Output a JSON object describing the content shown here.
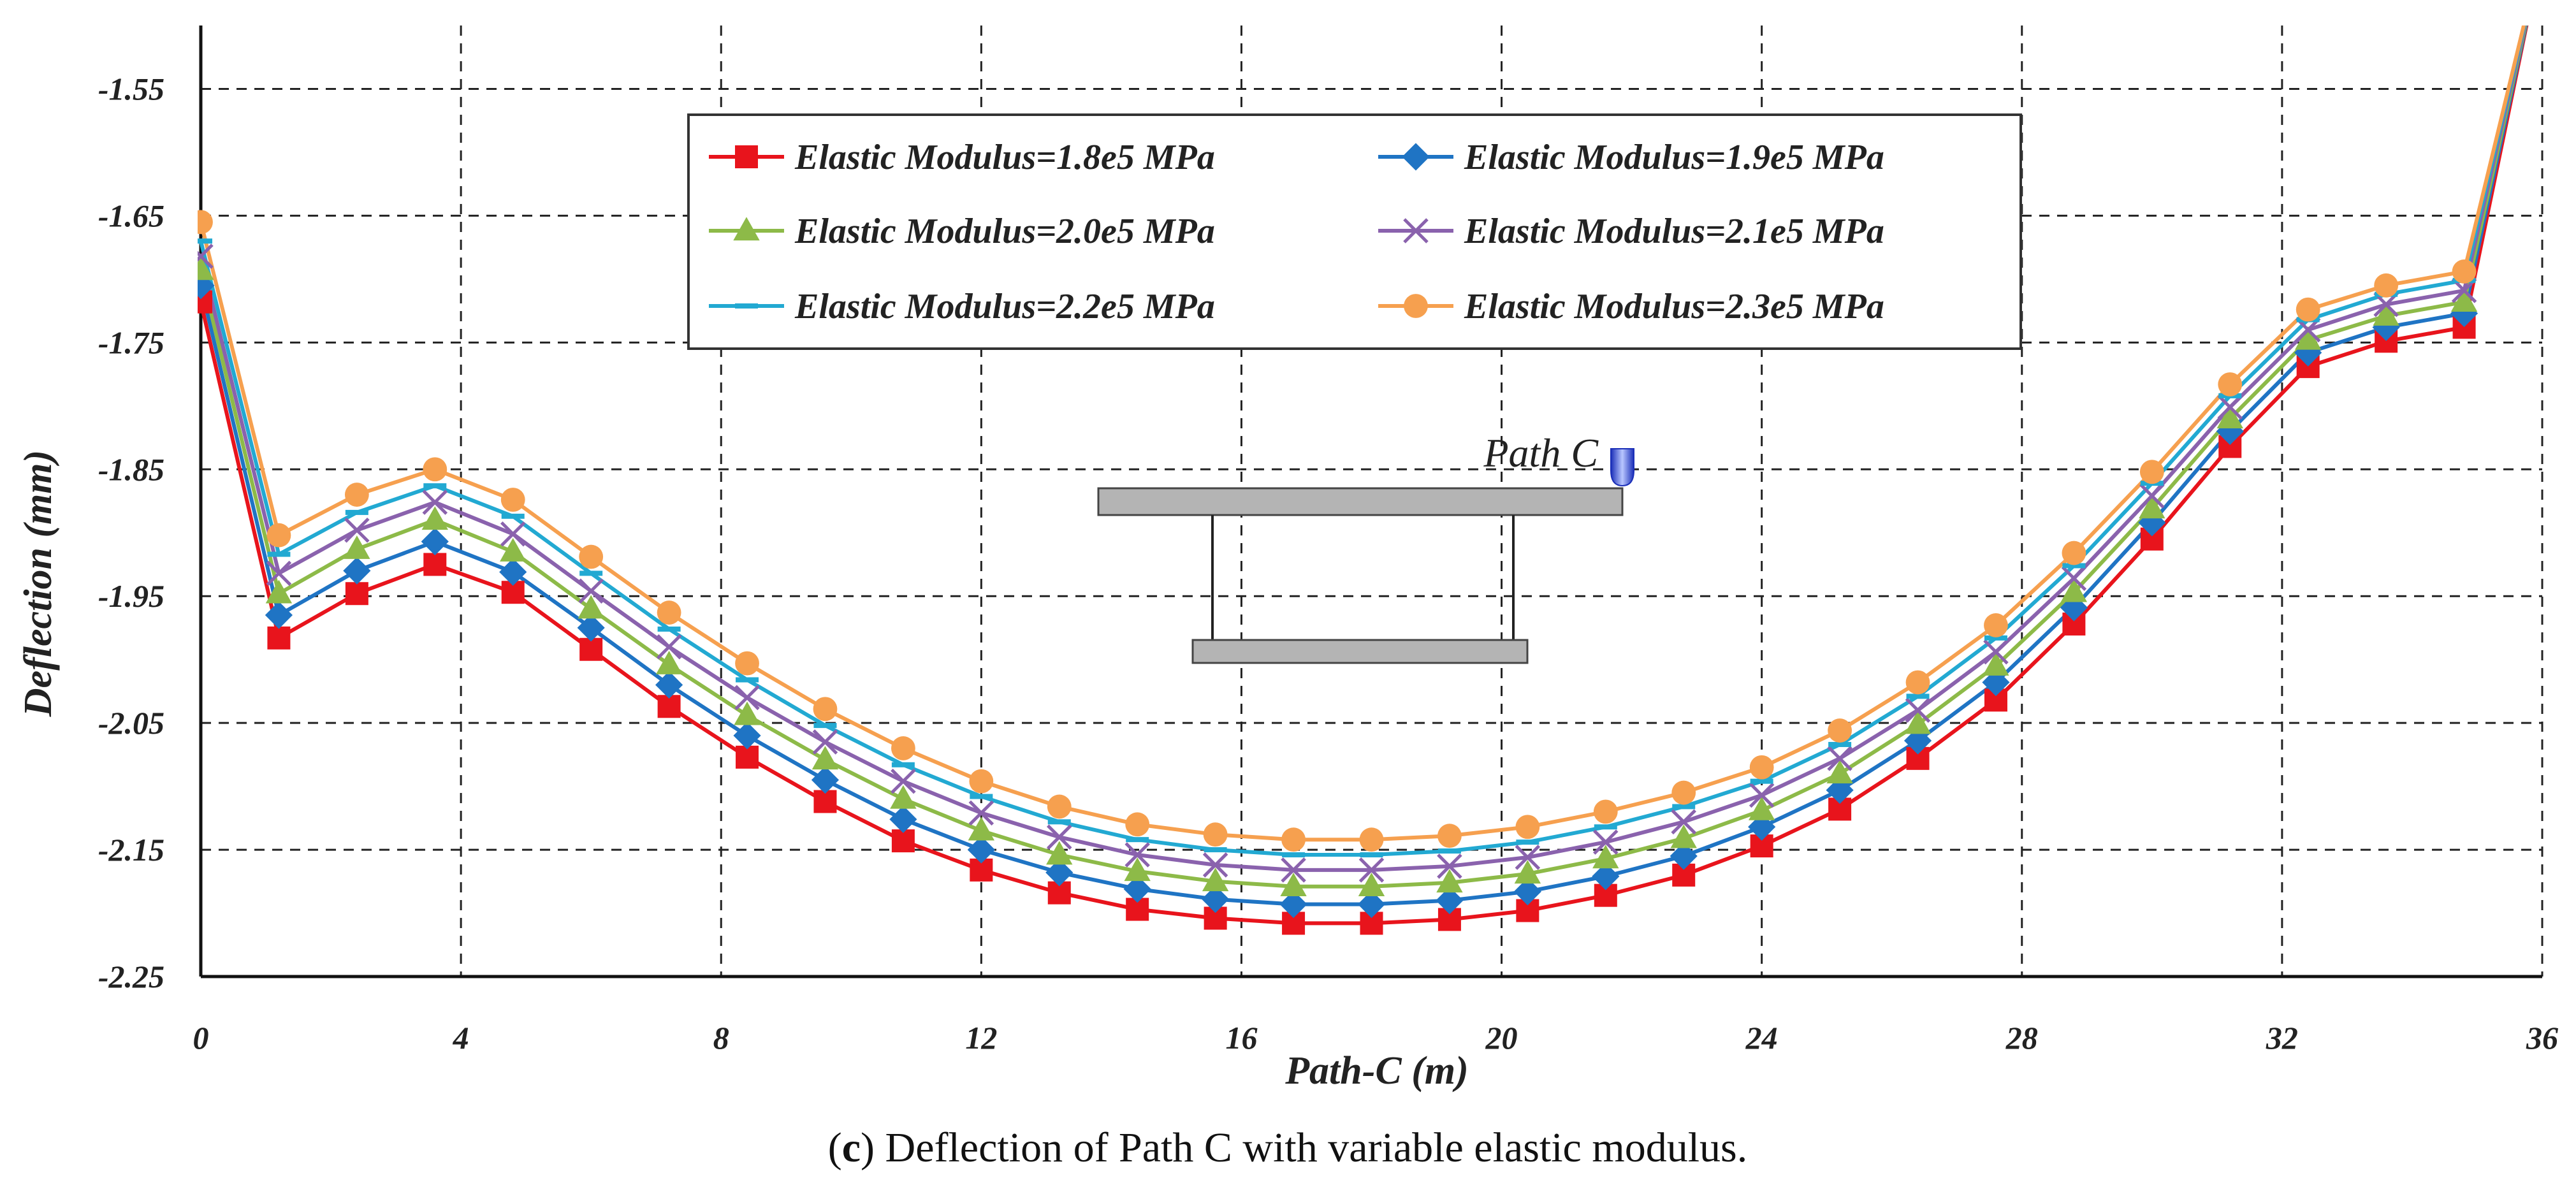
{
  "chart_data": {
    "type": "line",
    "xlabel": "Path-C (m)",
    "ylabel": "Deflection (mm)",
    "xlim": [
      0,
      36
    ],
    "ylim": [
      -2.25,
      -1.5
    ],
    "xticks": [
      0,
      4,
      8,
      12,
      16,
      20,
      24,
      28,
      32,
      36
    ],
    "yticks": [
      -2.25,
      -2.15,
      -2.05,
      -1.95,
      -1.85,
      -1.75,
      -1.65,
      -1.55
    ],
    "ytick_labels": [
      "-2.25",
      "-2.15",
      "-2.05",
      "-1.95",
      "-1.85",
      "-1.75",
      "-1.65",
      "-1.55"
    ],
    "grid": true,
    "legend_position": "top-center",
    "x": [
      0,
      1.2,
      2.4,
      3.6,
      4.8,
      6.0,
      7.2,
      8.4,
      9.6,
      10.8,
      12.0,
      13.2,
      14.4,
      15.6,
      16.8,
      18.0,
      19.2,
      20.4,
      21.6,
      22.8,
      24.0,
      25.2,
      26.4,
      27.6,
      28.8,
      30.0,
      31.2,
      32.4,
      33.6,
      34.8,
      36.0
    ],
    "series": [
      {
        "name": "Elastic Modulus=1.8e5 MPa",
        "color": "#e8141c",
        "marker": "square",
        "values": [
          -1.718,
          -1.983,
          -1.948,
          -1.925,
          -1.947,
          -1.992,
          -2.037,
          -2.077,
          -2.112,
          -2.143,
          -2.166,
          -2.184,
          -2.197,
          -2.204,
          -2.208,
          -2.208,
          -2.205,
          -2.198,
          -2.186,
          -2.17,
          -2.147,
          -2.118,
          -2.078,
          -2.032,
          -1.972,
          -1.905,
          -1.832,
          -1.769,
          -1.749,
          -1.738,
          -1.44
        ]
      },
      {
        "name": "Elastic Modulus=1.9e5 MPa",
        "color": "#1f74c4",
        "marker": "diamond",
        "values": [
          -1.705,
          -1.965,
          -1.93,
          -1.907,
          -1.931,
          -1.975,
          -2.02,
          -2.06,
          -2.095,
          -2.126,
          -2.15,
          -2.168,
          -2.181,
          -2.189,
          -2.193,
          -2.193,
          -2.19,
          -2.183,
          -2.171,
          -2.155,
          -2.132,
          -2.103,
          -2.064,
          -2.018,
          -1.959,
          -1.892,
          -1.82,
          -1.758,
          -1.738,
          -1.727,
          -1.44
        ]
      },
      {
        "name": "Elastic Modulus=2.0e5 MPa",
        "color": "#8dba48",
        "marker": "triangle",
        "values": [
          -1.693,
          -1.948,
          -1.913,
          -1.89,
          -1.915,
          -1.96,
          -2.004,
          -2.044,
          -2.079,
          -2.11,
          -2.135,
          -2.154,
          -2.167,
          -2.175,
          -2.179,
          -2.179,
          -2.176,
          -2.169,
          -2.157,
          -2.141,
          -2.119,
          -2.09,
          -2.051,
          -2.005,
          -1.947,
          -1.881,
          -1.81,
          -1.748,
          -1.729,
          -1.718,
          -1.44
        ]
      },
      {
        "name": "Elastic Modulus=2.1e5 MPa",
        "color": "#8a62ad",
        "marker": "x",
        "values": [
          -1.682,
          -1.932,
          -1.898,
          -1.876,
          -1.901,
          -1.946,
          -1.99,
          -2.03,
          -2.065,
          -2.096,
          -2.121,
          -2.14,
          -2.154,
          -2.162,
          -2.166,
          -2.166,
          -2.163,
          -2.156,
          -2.144,
          -2.128,
          -2.107,
          -2.078,
          -2.04,
          -1.994,
          -1.936,
          -1.871,
          -1.801,
          -1.74,
          -1.72,
          -1.709,
          -1.44
        ]
      },
      {
        "name": "Elastic Modulus=2.2e5 MPa",
        "color": "#22a9d2",
        "marker": "dash",
        "values": [
          -1.67,
          -1.917,
          -1.884,
          -1.863,
          -1.887,
          -1.932,
          -1.976,
          -2.016,
          -2.052,
          -2.083,
          -2.108,
          -2.128,
          -2.142,
          -2.15,
          -2.154,
          -2.154,
          -2.151,
          -2.144,
          -2.132,
          -2.116,
          -2.096,
          -2.067,
          -2.029,
          -1.983,
          -1.926,
          -1.861,
          -1.792,
          -1.732,
          -1.712,
          -1.701,
          -1.44
        ]
      },
      {
        "name": "Elastic Modulus=2.3e5 MPa",
        "color": "#f6a04f",
        "marker": "circle",
        "values": [
          -1.655,
          -1.902,
          -1.87,
          -1.85,
          -1.874,
          -1.919,
          -1.963,
          -2.003,
          -2.039,
          -2.07,
          -2.096,
          -2.116,
          -2.13,
          -2.138,
          -2.142,
          -2.142,
          -2.139,
          -2.132,
          -2.12,
          -2.105,
          -2.085,
          -2.056,
          -2.018,
          -1.973,
          -1.916,
          -1.852,
          -1.783,
          -1.724,
          -1.705,
          -1.694,
          -1.44
        ]
      }
    ],
    "inset": {
      "label": "Path C",
      "marker_color": "#3a4fd6"
    }
  },
  "caption": {
    "letter": "c",
    "text": " Deflection of Path C with variable elastic modulus."
  }
}
